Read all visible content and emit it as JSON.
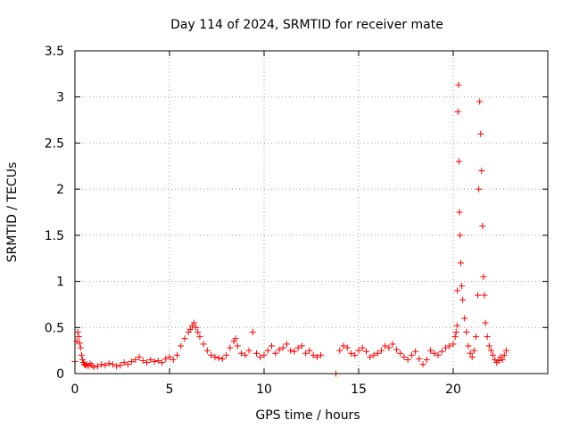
{
  "chart_data": {
    "type": "scatter",
    "title": "Day 114 of 2024, SRMTID for receiver mate",
    "xlabel": "GPS time / hours",
    "ylabel": "SRMTID / TECUs",
    "xlim": [
      0,
      25
    ],
    "ylim": [
      0,
      3.5
    ],
    "xticks": [
      0,
      5,
      10,
      15,
      20
    ],
    "yticks": [
      0,
      0.5,
      1,
      1.5,
      2,
      2.5,
      3,
      3.5
    ],
    "xtick_labels": [
      "0",
      "5",
      "10",
      "15",
      "20"
    ],
    "ytick_labels": [
      "0",
      "0.5",
      "1",
      "1.5",
      "2",
      "2.5",
      "3",
      "3.5"
    ],
    "grid": true,
    "marker": "+",
    "color": "#ff0000",
    "series": [
      {
        "name": "SRMTID",
        "x": [
          0.0,
          0.1,
          0.15,
          0.2,
          0.25,
          0.3,
          0.35,
          0.4,
          0.45,
          0.5,
          0.55,
          0.6,
          0.7,
          0.8,
          0.9,
          1.0,
          1.2,
          1.4,
          1.6,
          1.8,
          2.0,
          2.2,
          2.4,
          2.6,
          2.8,
          3.0,
          3.2,
          3.4,
          3.6,
          3.8,
          4.0,
          4.2,
          4.4,
          4.6,
          4.8,
          5.0,
          5.2,
          5.4,
          5.6,
          5.8,
          6.0,
          6.1,
          6.2,
          6.3,
          6.4,
          6.5,
          6.6,
          6.8,
          7.0,
          7.2,
          7.4,
          7.6,
          7.8,
          8.0,
          8.2,
          8.4,
          8.5,
          8.6,
          8.8,
          9.0,
          9.2,
          9.4,
          9.6,
          9.8,
          10.0,
          10.2,
          10.4,
          10.6,
          10.8,
          11.0,
          11.2,
          11.4,
          11.6,
          11.8,
          12.0,
          12.2,
          12.4,
          12.6,
          12.8,
          13.0,
          13.8,
          14.0,
          14.2,
          14.4,
          14.6,
          14.8,
          15.0,
          15.2,
          15.4,
          15.6,
          15.8,
          16.0,
          16.2,
          16.4,
          16.6,
          16.8,
          17.0,
          17.2,
          17.4,
          17.6,
          17.8,
          18.0,
          18.2,
          18.4,
          18.6,
          18.8,
          19.0,
          19.2,
          19.4,
          19.6,
          19.8,
          20.0,
          20.1,
          20.15,
          20.2,
          20.22,
          20.25,
          20.28,
          20.3,
          20.33,
          20.36,
          20.4,
          20.45,
          20.5,
          20.6,
          20.7,
          20.8,
          20.9,
          21.0,
          21.1,
          21.2,
          21.3,
          21.35,
          21.4,
          21.45,
          21.5,
          21.55,
          21.6,
          21.65,
          21.7,
          21.8,
          21.9,
          22.0,
          22.1,
          22.2,
          22.3,
          22.4,
          22.5,
          22.6,
          22.7,
          22.8
        ],
        "y": [
          0.13,
          0.35,
          0.45,
          0.4,
          0.33,
          0.28,
          0.2,
          0.15,
          0.12,
          0.1,
          0.09,
          0.1,
          0.08,
          0.11,
          0.09,
          0.07,
          0.08,
          0.1,
          0.09,
          0.11,
          0.1,
          0.08,
          0.09,
          0.12,
          0.1,
          0.13,
          0.15,
          0.18,
          0.14,
          0.12,
          0.15,
          0.13,
          0.14,
          0.12,
          0.16,
          0.18,
          0.15,
          0.2,
          0.3,
          0.38,
          0.45,
          0.48,
          0.52,
          0.55,
          0.5,
          0.45,
          0.4,
          0.32,
          0.25,
          0.2,
          0.18,
          0.17,
          0.16,
          0.2,
          0.28,
          0.35,
          0.38,
          0.3,
          0.22,
          0.2,
          0.25,
          0.45,
          0.22,
          0.18,
          0.2,
          0.25,
          0.3,
          0.22,
          0.26,
          0.28,
          0.32,
          0.25,
          0.24,
          0.28,
          0.3,
          0.22,
          0.25,
          0.2,
          0.18,
          0.2,
          0.0,
          0.25,
          0.3,
          0.28,
          0.22,
          0.2,
          0.25,
          0.28,
          0.24,
          0.18,
          0.2,
          0.22,
          0.25,
          0.3,
          0.28,
          0.32,
          0.26,
          0.22,
          0.18,
          0.15,
          0.2,
          0.24,
          0.16,
          0.1,
          0.15,
          0.25,
          0.22,
          0.2,
          0.24,
          0.28,
          0.3,
          0.32,
          0.4,
          0.45,
          0.52,
          0.9,
          2.84,
          3.13,
          2.3,
          1.75,
          1.5,
          1.2,
          0.95,
          0.8,
          0.6,
          0.45,
          0.3,
          0.22,
          0.18,
          0.25,
          0.4,
          0.85,
          2.0,
          2.95,
          2.6,
          2.2,
          1.6,
          1.05,
          0.85,
          0.55,
          0.4,
          0.3,
          0.25,
          0.2,
          0.15,
          0.12,
          0.14,
          0.18,
          0.15,
          0.2,
          0.25
        ]
      }
    ]
  }
}
